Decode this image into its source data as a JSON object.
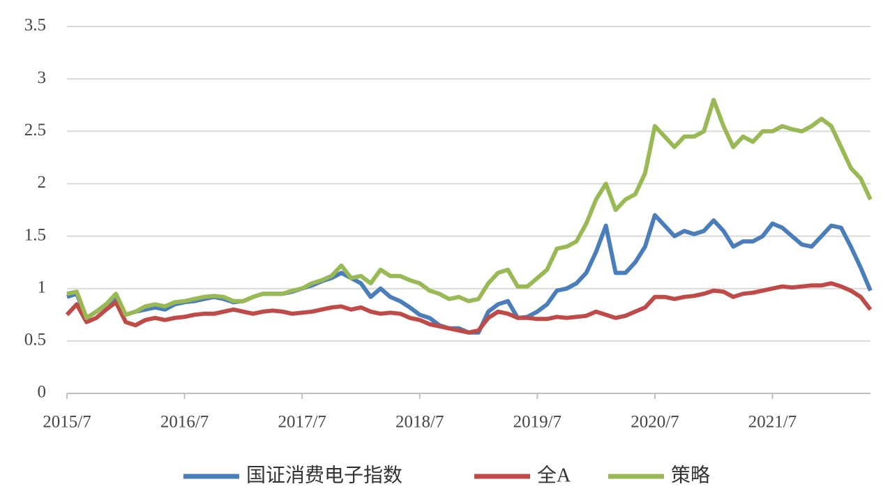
{
  "chart_data": {
    "type": "line",
    "categories": [
      "2015/7",
      null,
      null,
      null,
      null,
      null,
      null,
      null,
      null,
      null,
      null,
      null,
      "2016/7",
      null,
      null,
      null,
      null,
      null,
      null,
      null,
      null,
      null,
      null,
      null,
      "2017/7",
      null,
      null,
      null,
      null,
      null,
      null,
      null,
      null,
      null,
      null,
      null,
      "2018/7",
      null,
      null,
      null,
      null,
      null,
      null,
      null,
      null,
      null,
      null,
      null,
      "2019/7",
      null,
      null,
      null,
      null,
      null,
      null,
      null,
      null,
      null,
      null,
      null,
      "2020/7",
      null,
      null,
      null,
      null,
      null,
      null,
      null,
      null,
      null,
      null,
      null,
      "2021/7",
      null,
      null,
      null,
      null,
      null,
      null,
      null,
      null,
      null,
      null
    ],
    "series": [
      {
        "name": "国证消费电子指数",
        "color": "#4a7ebb",
        "values": [
          0.92,
          0.95,
          0.72,
          0.78,
          0.85,
          0.9,
          0.75,
          0.78,
          0.8,
          0.82,
          0.8,
          0.85,
          0.87,
          0.88,
          0.9,
          0.92,
          0.9,
          0.87,
          0.88,
          0.92,
          0.95,
          0.95,
          0.95,
          0.97,
          1.0,
          1.03,
          1.07,
          1.1,
          1.15,
          1.1,
          1.05,
          0.92,
          1.0,
          0.92,
          0.88,
          0.82,
          0.75,
          0.72,
          0.65,
          0.62,
          0.62,
          0.58,
          0.58,
          0.78,
          0.85,
          0.88,
          0.72,
          0.73,
          0.78,
          0.85,
          0.98,
          1.0,
          1.05,
          1.15,
          1.35,
          1.6,
          1.15,
          1.15,
          1.25,
          1.4,
          1.7,
          1.6,
          1.5,
          1.55,
          1.52,
          1.55,
          1.65,
          1.55,
          1.4,
          1.45,
          1.45,
          1.5,
          1.62,
          1.58,
          1.5,
          1.42,
          1.4,
          1.5,
          1.6,
          1.58,
          1.4,
          1.2,
          0.98
        ]
      },
      {
        "name": "全A",
        "color": "#be4b48",
        "values": [
          0.75,
          0.85,
          0.68,
          0.72,
          0.8,
          0.87,
          0.68,
          0.65,
          0.7,
          0.72,
          0.7,
          0.72,
          0.73,
          0.75,
          0.76,
          0.76,
          0.78,
          0.8,
          0.78,
          0.76,
          0.78,
          0.79,
          0.78,
          0.76,
          0.77,
          0.78,
          0.8,
          0.82,
          0.83,
          0.8,
          0.82,
          0.78,
          0.76,
          0.77,
          0.76,
          0.72,
          0.7,
          0.66,
          0.64,
          0.62,
          0.6,
          0.58,
          0.6,
          0.72,
          0.78,
          0.76,
          0.72,
          0.72,
          0.71,
          0.71,
          0.73,
          0.72,
          0.73,
          0.74,
          0.78,
          0.75,
          0.72,
          0.74,
          0.78,
          0.82,
          0.92,
          0.92,
          0.9,
          0.92,
          0.93,
          0.95,
          0.98,
          0.97,
          0.92,
          0.95,
          0.96,
          0.98,
          1.0,
          1.02,
          1.01,
          1.02,
          1.03,
          1.03,
          1.05,
          1.02,
          0.98,
          0.92,
          0.8
        ]
      },
      {
        "name": "策略",
        "color": "#98b954",
        "values": [
          0.95,
          0.97,
          0.72,
          0.78,
          0.85,
          0.95,
          0.75,
          0.78,
          0.83,
          0.85,
          0.83,
          0.87,
          0.88,
          0.9,
          0.92,
          0.93,
          0.92,
          0.88,
          0.88,
          0.92,
          0.95,
          0.95,
          0.95,
          0.98,
          1.0,
          1.05,
          1.08,
          1.12,
          1.22,
          1.1,
          1.12,
          1.05,
          1.18,
          1.12,
          1.12,
          1.08,
          1.05,
          0.98,
          0.95,
          0.9,
          0.92,
          0.88,
          0.9,
          1.05,
          1.15,
          1.18,
          1.02,
          1.02,
          1.1,
          1.18,
          1.38,
          1.4,
          1.45,
          1.62,
          1.85,
          2.0,
          1.75,
          1.85,
          1.9,
          2.1,
          2.55,
          2.45,
          2.35,
          2.45,
          2.45,
          2.5,
          2.8,
          2.55,
          2.35,
          2.45,
          2.4,
          2.5,
          2.5,
          2.55,
          2.52,
          2.5,
          2.55,
          2.62,
          2.55,
          2.35,
          2.15,
          2.05,
          1.85
        ]
      }
    ],
    "ylim": [
      0,
      3.5
    ],
    "yticks": [
      0,
      0.5,
      1,
      1.5,
      2,
      2.5,
      3,
      3.5
    ],
    "grid": true,
    "legend": "bottom"
  }
}
